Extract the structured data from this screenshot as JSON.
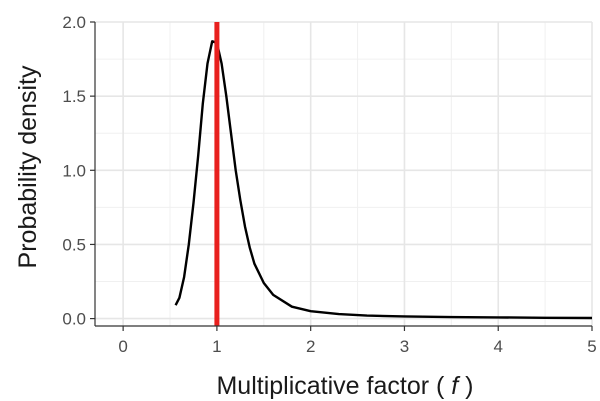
{
  "chart_data": {
    "type": "line",
    "xlabel": "Multiplicative factor",
    "xlabel_symbol": "f",
    "ylabel": "Probability density",
    "xlim": [
      -0.3,
      5.0
    ],
    "ylim": [
      -0.05,
      2.0
    ],
    "x_ticks": [
      "0",
      "1",
      "2",
      "3",
      "4",
      "5"
    ],
    "y_ticks": [
      "0.0",
      "0.5",
      "1.0",
      "1.5",
      "2.0"
    ],
    "grid": true,
    "series": [
      {
        "color": "#000000",
        "x": [
          0.56,
          0.6,
          0.65,
          0.7,
          0.75,
          0.8,
          0.85,
          0.9,
          0.95,
          1.0,
          1.05,
          1.1,
          1.15,
          1.2,
          1.25,
          1.3,
          1.35,
          1.4,
          1.5,
          1.6,
          1.8,
          2.0,
          2.3,
          2.6,
          3.0,
          3.5,
          4.0,
          4.5,
          5.0
        ],
        "y": [
          0.09,
          0.14,
          0.28,
          0.5,
          0.78,
          1.1,
          1.45,
          1.72,
          1.87,
          1.86,
          1.72,
          1.5,
          1.25,
          1.0,
          0.8,
          0.62,
          0.48,
          0.37,
          0.24,
          0.16,
          0.08,
          0.05,
          0.03,
          0.02,
          0.015,
          0.01,
          0.008,
          0.005,
          0.004
        ]
      }
    ],
    "vline": {
      "x": 1.0,
      "color": "#e8201e"
    }
  }
}
